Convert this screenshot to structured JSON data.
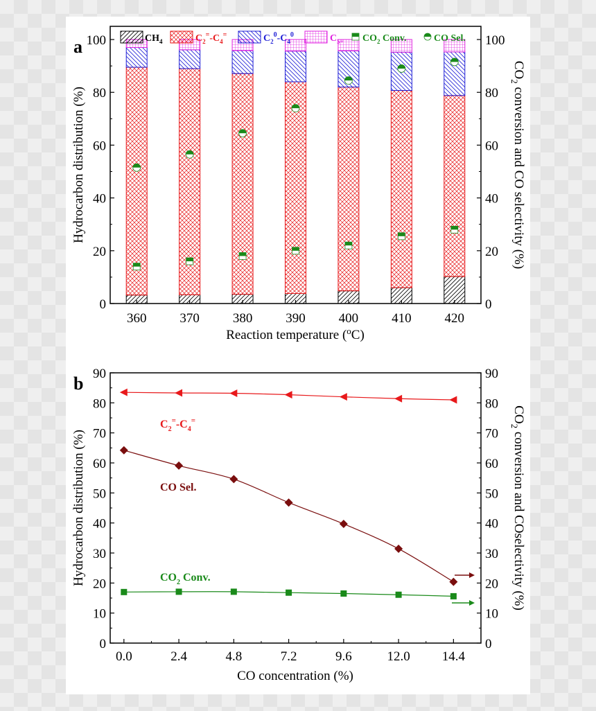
{
  "panel_a": {
    "letter": "a",
    "chart_data": {
      "type": "bar",
      "stacked": true,
      "categories": [
        "360",
        "370",
        "380",
        "390",
        "400",
        "410",
        "420"
      ],
      "series": [
        {
          "name": "CH4",
          "values": [
            3.2,
            3.3,
            3.5,
            3.8,
            4.8,
            6.0,
            10.2
          ],
          "color": "#000000"
        },
        {
          "name": "C2=-C4=",
          "values": [
            86.3,
            85.7,
            83.6,
            80.2,
            77.2,
            74.7,
            68.6
          ],
          "color": "#e8191b"
        },
        {
          "name": "C20-C40",
          "values": [
            7.5,
            7.1,
            8.7,
            11.6,
            13.7,
            14.5,
            16.5
          ],
          "color": "#1f1fd6"
        },
        {
          "name": "C5+",
          "values": [
            3.0,
            3.9,
            4.2,
            4.4,
            4.3,
            4.8,
            4.7
          ],
          "color": "#e020e0"
        }
      ],
      "right_series": [
        {
          "name": "CO2 Conv.",
          "values": [
            14,
            16,
            18,
            20,
            22,
            25.5,
            28
          ],
          "color": "#1a8a1a"
        },
        {
          "name": "CO Sel.",
          "values": [
            51.5,
            56.5,
            64.5,
            74,
            84.5,
            89,
            91.5
          ],
          "color": "#1a8a1a"
        }
      ],
      "xlabel": "Reaction temperature (oC)",
      "ylabel": "Hydrocarbon distribution (%)",
      "y2label": "CO2 conversion and CO selectivity (%)",
      "ylim": [
        0,
        105
      ],
      "y2lim": [
        0,
        105
      ],
      "yticks": [
        0,
        20,
        40,
        60,
        80,
        100
      ],
      "legend_position": "top"
    }
  },
  "panel_b": {
    "letter": "b",
    "chart_data": {
      "type": "line",
      "x": [
        0.0,
        2.4,
        4.8,
        7.2,
        9.6,
        12.0,
        14.4
      ],
      "xticks": [
        "0.0",
        "2.4",
        "4.8",
        "7.2",
        "9.6",
        "12.0",
        "14.4"
      ],
      "series": [
        {
          "name": "C2=-C4=",
          "values": [
            83.5,
            83.3,
            83.2,
            82.7,
            82.0,
            81.4,
            81.0
          ],
          "color": "#e8191b",
          "marker": "left-triangle",
          "axis": "left"
        },
        {
          "name": "CO Sel.",
          "values": [
            64.2,
            59.1,
            54.6,
            46.8,
            39.7,
            31.4,
            20.4
          ],
          "color": "#7a0e0e",
          "marker": "diamond",
          "axis": "right"
        },
        {
          "name": "CO2 Conv.",
          "values": [
            17.0,
            17.1,
            17.1,
            16.8,
            16.5,
            16.1,
            15.6
          ],
          "color": "#1a8a1a",
          "marker": "square",
          "axis": "right"
        }
      ],
      "xlabel": "CO concentration (%)",
      "ylabel": "Hydrocarbon distribution (%)",
      "y2label": "CO2 conversion and COselectivity (%)",
      "xlim": [
        -0.6,
        15.6
      ],
      "ylim": [
        0,
        90
      ],
      "y2lim": [
        0,
        90
      ],
      "yticks": [
        0,
        10,
        20,
        30,
        40,
        50,
        60,
        70,
        80,
        90
      ]
    }
  }
}
